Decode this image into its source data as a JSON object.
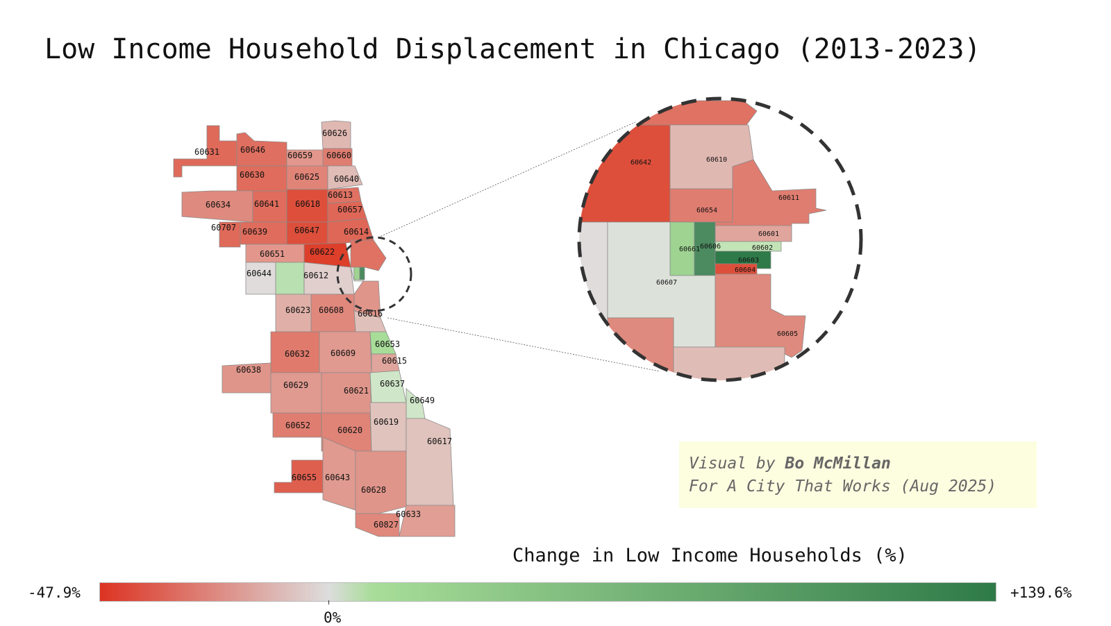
{
  "title": "Low Income Household Displacement in Chicago (2013-2023)",
  "credit": {
    "line1_prefix": "Visual by ",
    "author": "Bo McMillan",
    "line2": "For A City That Works (Aug 2025)"
  },
  "legend": {
    "title": "Change in Low Income Households (%)",
    "min_label": "-47.9%",
    "max_label": "+139.6%",
    "zero_label": "0%",
    "min_value": -47.9,
    "max_value": 139.6,
    "colors": {
      "negative": "#dd3322",
      "neutral": "#dddddd",
      "positive_light": "#a8dd99",
      "positive": "#2e7a48"
    }
  },
  "zip_codes": [
    "60631",
    "60646",
    "60659",
    "60660",
    "60626",
    "60630",
    "60625",
    "60640",
    "60634",
    "60641",
    "60618",
    "60613",
    "60657",
    "60707",
    "60639",
    "60647",
    "60614",
    "60651",
    "60622",
    "60644",
    "60612",
    "60623",
    "60608",
    "60616",
    "60653",
    "60632",
    "60609",
    "60615",
    "60638",
    "60629",
    "60621",
    "60637",
    "60649",
    "60652",
    "60620",
    "60619",
    "60617",
    "60655",
    "60643",
    "60628",
    "60633",
    "60827"
  ],
  "zoom_zip_codes": [
    "60642",
    "60610",
    "60611",
    "60654",
    "60601",
    "60661",
    "60606",
    "60602",
    "60603",
    "60604",
    "60607",
    "60605"
  ]
}
